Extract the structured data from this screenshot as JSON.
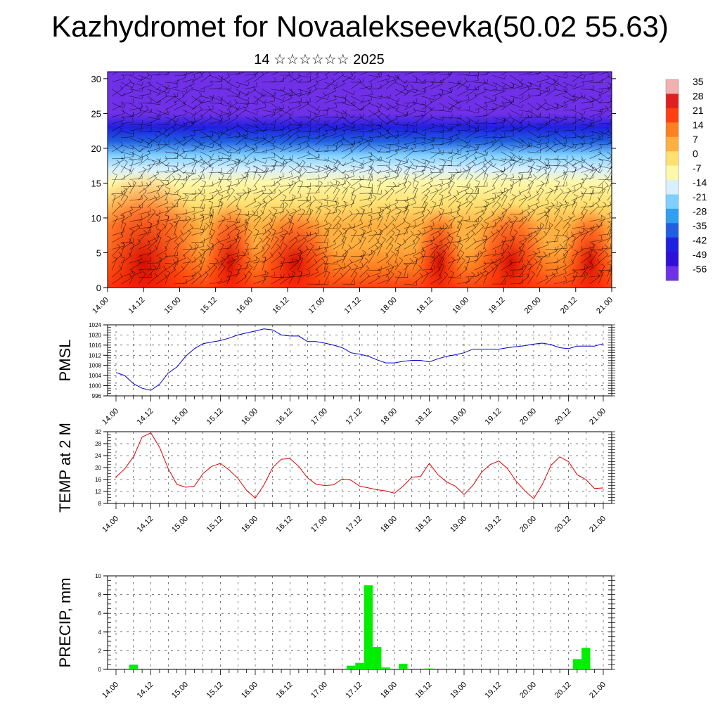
{
  "title": "Kazhydromet for Novaalekseevka(50.02 55.63)",
  "subtitle": "14 ☆☆☆☆☆☆ 2025",
  "time_ticks": [
    "14.00",
    "14.12",
    "15.00",
    "15.12",
    "16.00",
    "16.12",
    "17.00",
    "17.12",
    "18.00",
    "18.12",
    "19.00",
    "19.12",
    "20.00",
    "20.12",
    "21.00"
  ],
  "colorbar": {
    "labels": [
      "35",
      "28",
      "21",
      "14",
      "7",
      "0",
      "-7",
      "-14",
      "-21",
      "-28",
      "-35",
      "-42",
      "-49",
      "-56"
    ],
    "colors": [
      "#f2b0b0",
      "#e02020",
      "#ff4010",
      "#ff8020",
      "#ffb040",
      "#ffe070",
      "#fff8a8",
      "#d8f0ff",
      "#80d0ff",
      "#30a0f0",
      "#2060e0",
      "#2020e0",
      "#3010d8",
      "#7030e8"
    ]
  },
  "chart_data": [
    {
      "type": "heatmap",
      "title": "",
      "xlabel": "",
      "ylabel": "",
      "xlim": [
        0,
        7
      ],
      "ylim": [
        0,
        31
      ],
      "yticks": [
        0,
        5,
        10,
        15,
        20,
        25,
        30
      ],
      "note_levels": [
        {
          "level": 0,
          "temp": 18
        },
        {
          "level": 3,
          "temp": 16
        },
        {
          "level": 6,
          "temp": 10
        },
        {
          "level": 9,
          "temp": 4
        },
        {
          "level": 12,
          "temp": -3
        },
        {
          "level": 15,
          "temp": -10
        },
        {
          "level": 17,
          "temp": -16
        },
        {
          "level": 19,
          "temp": -24
        },
        {
          "level": 21,
          "temp": -33
        },
        {
          "level": 23,
          "temp": -44
        },
        {
          "level": 25,
          "temp": -53
        },
        {
          "level": 27,
          "temp": -56
        },
        {
          "level": 29,
          "temp": -58
        },
        {
          "level": 31,
          "temp": -60
        }
      ]
    },
    {
      "type": "line",
      "ylabel": "PMSL",
      "ylim": [
        996,
        1024
      ],
      "yticks": [
        996,
        1000,
        1004,
        1008,
        1012,
        1016,
        1020,
        1024
      ],
      "color": "#0000cc",
      "values": [
        1005.2,
        1004,
        1000.8,
        999,
        998.2,
        1000.6,
        1005,
        1007.4,
        1011.6,
        1014.6,
        1016.6,
        1017.2,
        1017.8,
        1018.8,
        1020,
        1020.8,
        1021.6,
        1022.4,
        1022,
        1020,
        1019.6,
        1019.6,
        1017.4,
        1017.4,
        1016.8,
        1016,
        1015,
        1013,
        1012.4,
        1011.6,
        1010.2,
        1009,
        1009,
        1009.6,
        1010,
        1010,
        1009.4,
        1010.6,
        1011.6,
        1012.2,
        1013,
        1014.4,
        1014.4,
        1014.4,
        1014.4,
        1015,
        1015.4,
        1015.8,
        1016.4,
        1016.8,
        1016.2,
        1015,
        1014.6,
        1015.6,
        1015.6,
        1015.6,
        1016.6
      ]
    },
    {
      "type": "line",
      "ylabel": "TEMP at 2 M",
      "ylim": [
        8,
        32
      ],
      "yticks": [
        8,
        12,
        16,
        20,
        24,
        28,
        32
      ],
      "color": "#dd0000",
      "values": [
        16.8,
        19.6,
        23.6,
        30.2,
        31.6,
        26.8,
        19.6,
        14.4,
        13.4,
        13.8,
        18,
        20.4,
        21.4,
        19.2,
        16.4,
        12.4,
        9.8,
        14.2,
        20,
        22.8,
        23,
        20.4,
        16.6,
        14.4,
        14,
        14.2,
        16.2,
        15.8,
        13.8,
        13.2,
        12.6,
        12.2,
        11.4,
        13.8,
        16.8,
        17,
        21.4,
        17.6,
        15.2,
        13.8,
        11,
        14,
        18.4,
        21,
        22.2,
        19.6,
        15.4,
        12.2,
        9.6,
        14.4,
        20.8,
        23.6,
        22,
        17.6,
        16,
        13,
        13.2
      ]
    },
    {
      "type": "bar",
      "ylabel": "PRECIP, mm",
      "ylim": [
        0,
        10
      ],
      "yticks": [
        0,
        2,
        4,
        6,
        8,
        10
      ],
      "color": "#00ee00",
      "values": [
        0,
        0,
        0.5,
        0,
        0,
        0,
        0,
        0,
        0,
        0,
        0,
        0,
        0,
        0,
        0,
        0,
        0,
        0,
        0,
        0,
        0,
        0,
        0,
        0,
        0,
        0,
        0,
        0.4,
        0.7,
        9,
        2.4,
        0.2,
        0,
        0.6,
        0,
        0,
        0.1,
        0,
        0,
        0,
        0,
        0,
        0,
        0,
        0,
        0,
        0,
        0,
        0,
        0,
        0,
        0,
        0,
        1.1,
        2.3,
        0,
        0
      ]
    }
  ]
}
